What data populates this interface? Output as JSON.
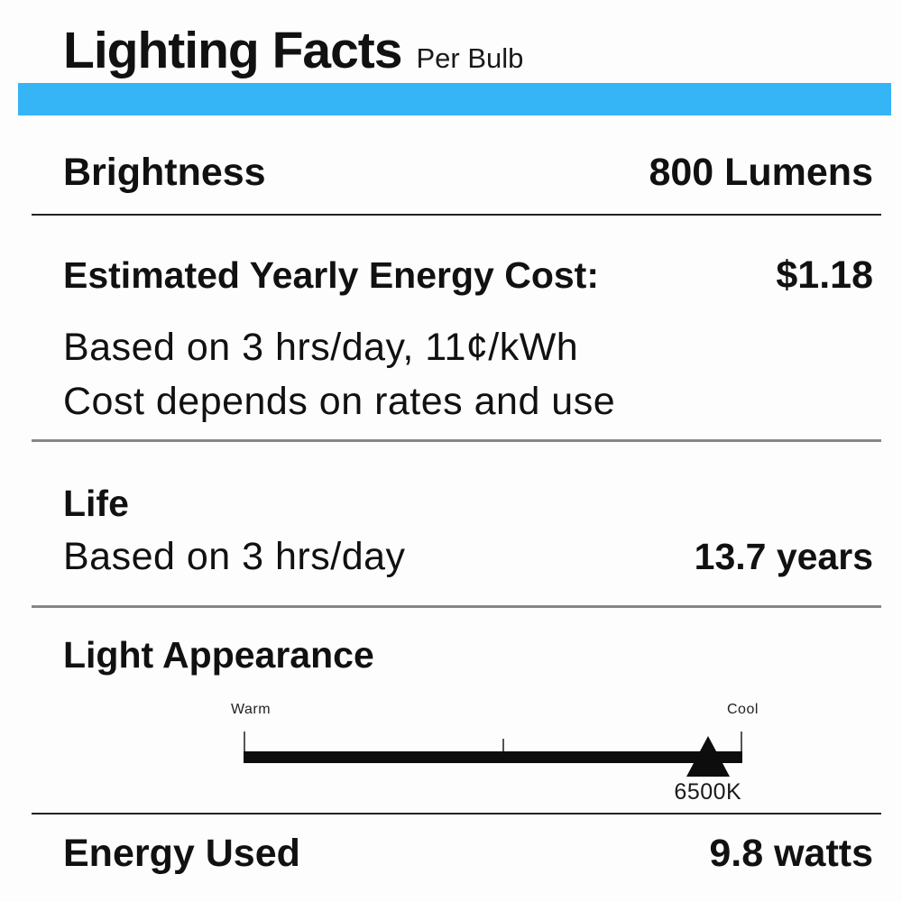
{
  "header": {
    "title": "Lighting Facts",
    "subtitle": "Per Bulb"
  },
  "colors": {
    "accent_bar": "#35b4f6",
    "divider_dark": "#222222",
    "divider_gray": "#878787",
    "scale_bar": "#0d0d0d"
  },
  "brightness": {
    "label": "Brightness",
    "value": "800 Lumens"
  },
  "energy_cost": {
    "label": "Estimated Yearly Energy Cost:",
    "value": "$1.18",
    "note_line1": "Based on 3 hrs/day, 11¢/kWh",
    "note_line2": "Cost depends on rates and use"
  },
  "life": {
    "label": "Life",
    "basis": "Based on 3 hrs/day",
    "value": "13.7 years"
  },
  "light_appearance": {
    "label": "Light Appearance",
    "scale": {
      "warm_label": "Warm",
      "cool_label": "Cool",
      "marker_value": "6500K",
      "marker_position_pct": 93.1
    }
  },
  "energy_used": {
    "label": "Energy Used",
    "value": "9.8 watts"
  }
}
